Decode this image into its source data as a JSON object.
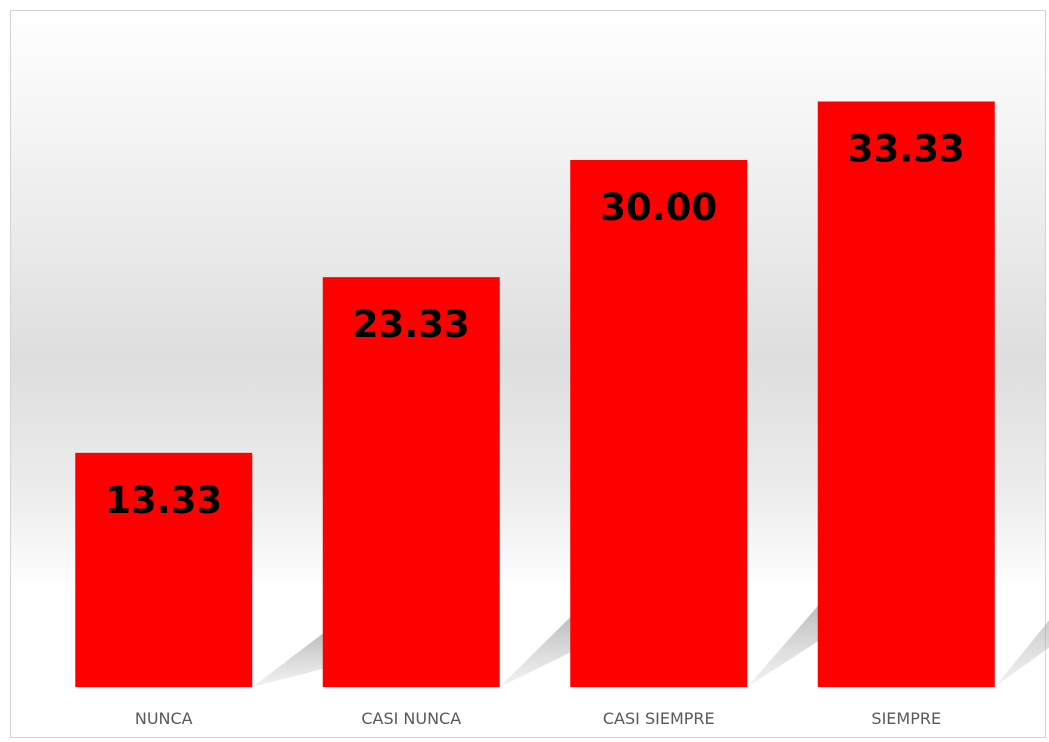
{
  "chart_data": {
    "type": "bar",
    "categories": [
      "NUNCA",
      "CASI NUNCA",
      "CASI SIEMPRE",
      "SIEMPRE"
    ],
    "values": [
      13.33,
      23.33,
      30.0,
      33.33
    ],
    "value_labels": [
      "13.33",
      "23.33",
      "30.00",
      "33.33"
    ],
    "title": "",
    "xlabel": "",
    "ylabel": "",
    "ylim": [
      0,
      37.4
    ],
    "grid": false,
    "legend": "none",
    "bar_color": "#ff0000",
    "label_color": "#000000",
    "category_label_color": "#595959"
  }
}
